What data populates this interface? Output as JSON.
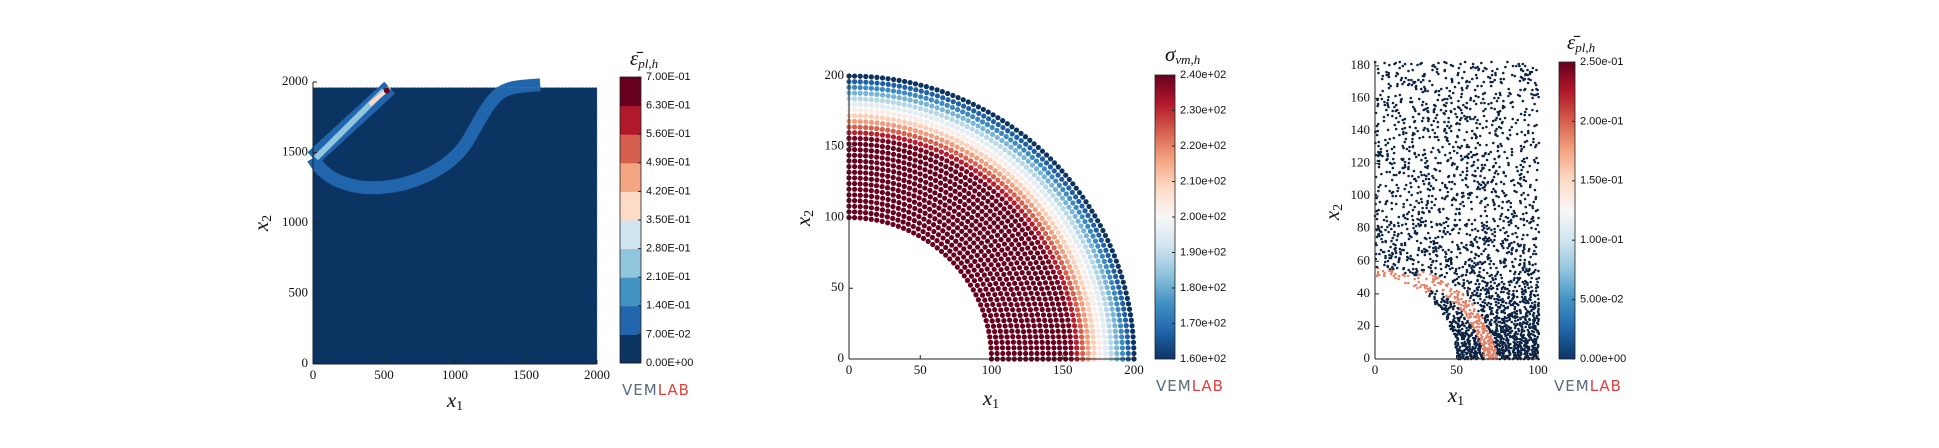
{
  "chart_data": [
    {
      "type": "contour",
      "xlabel": {
        "symbol": "x",
        "subscript": "1"
      },
      "ylabel": {
        "symbol": "x",
        "subscript": "2"
      },
      "xlim": [
        0,
        2000
      ],
      "ylim": [
        0,
        2000
      ],
      "xticks": [
        0,
        500,
        1000,
        1500,
        2000
      ],
      "yticks": [
        0,
        500,
        1000,
        1500,
        2000
      ],
      "colorbar_title": {
        "symbol": "ε̄",
        "subscript": "pl,h"
      },
      "clim": [
        0,
        0.7
      ],
      "cticks": [
        {
          "value": 0,
          "label": "0.00E+00"
        },
        {
          "value": 0.07,
          "label": "7.00E-02"
        },
        {
          "value": 0.14,
          "label": "1.40E-01"
        },
        {
          "value": 0.21,
          "label": "2.10E-01"
        },
        {
          "value": 0.28,
          "label": "2.80E-01"
        },
        {
          "value": 0.35,
          "label": "3.50E-01"
        },
        {
          "value": 0.42,
          "label": "4.20E-01"
        },
        {
          "value": 0.49,
          "label": "4.90E-01"
        },
        {
          "value": 0.56,
          "label": "5.60E-01"
        },
        {
          "value": 0.63,
          "label": "6.30E-01"
        },
        {
          "value": 0.7,
          "label": "7.00E-01"
        }
      ],
      "colormap": [
        "#0b3463",
        "#2166ac",
        "#4393c3",
        "#92c5de",
        "#d1e5f0",
        "#fddbc7",
        "#f4a582",
        "#d6604d",
        "#b2182b",
        "#67001f"
      ],
      "discrete": true,
      "logo": [
        "VEM",
        "LAB"
      ]
    },
    {
      "type": "annulus-points",
      "xlabel": {
        "symbol": "x",
        "subscript": "1"
      },
      "ylabel": {
        "symbol": "x",
        "subscript": "2"
      },
      "xlim": [
        0,
        200
      ],
      "ylim": [
        0,
        200
      ],
      "xticks": [
        0,
        50,
        100,
        150,
        200
      ],
      "yticks": [
        0,
        50,
        100,
        150,
        200
      ],
      "colorbar_title": {
        "symbol": "σ",
        "subscript": "vm,h"
      },
      "clim": [
        160,
        240
      ],
      "cticks": [
        {
          "value": 160,
          "label": "1.60e+02"
        },
        {
          "value": 170,
          "label": "1.70e+02"
        },
        {
          "value": 180,
          "label": "1.80e+02"
        },
        {
          "value": 190,
          "label": "1.90e+02"
        },
        {
          "value": 200,
          "label": "2.00e+02"
        },
        {
          "value": 210,
          "label": "2.10e+02"
        },
        {
          "value": 220,
          "label": "2.20e+02"
        },
        {
          "value": 230,
          "label": "2.30e+02"
        },
        {
          "value": 240,
          "label": "2.40e+02"
        }
      ],
      "colormap": [
        "#0b3463",
        "#2166ac",
        "#4393c3",
        "#92c5de",
        "#d1e5f0",
        "#f7f7f7",
        "#fddbc7",
        "#f4a582",
        "#d6604d",
        "#b2182b",
        "#67001f"
      ],
      "discrete": false,
      "logo": [
        "VEM",
        "LAB"
      ]
    },
    {
      "type": "plate-hole-points",
      "xlabel": {
        "symbol": "x",
        "subscript": "1"
      },
      "ylabel": {
        "symbol": "x",
        "subscript": "2"
      },
      "xlim": [
        0,
        100
      ],
      "ylim": [
        0,
        183
      ],
      "xticks": [
        0,
        50,
        100
      ],
      "yticks": [
        0,
        20,
        40,
        60,
        80,
        100,
        120,
        140,
        160,
        180
      ],
      "colorbar_title": {
        "symbol": "ε̄",
        "subscript": "pl,h"
      },
      "clim": [
        0,
        0.25
      ],
      "cticks": [
        {
          "value": 0,
          "label": "0.00e+00"
        },
        {
          "value": 0.05,
          "label": "5.00e-02"
        },
        {
          "value": 0.1,
          "label": "1.00e-01"
        },
        {
          "value": 0.15,
          "label": "1.50e-01"
        },
        {
          "value": 0.2,
          "label": "2.00e-01"
        },
        {
          "value": 0.25,
          "label": "2.50e-01"
        }
      ],
      "colormap": [
        "#0b3463",
        "#2166ac",
        "#4393c3",
        "#92c5de",
        "#d1e5f0",
        "#f7f7f7",
        "#fddbc7",
        "#f4a582",
        "#d6604d",
        "#b2182b",
        "#67001f"
      ],
      "discrete": false,
      "logo": [
        "VEM",
        "LAB"
      ]
    }
  ]
}
